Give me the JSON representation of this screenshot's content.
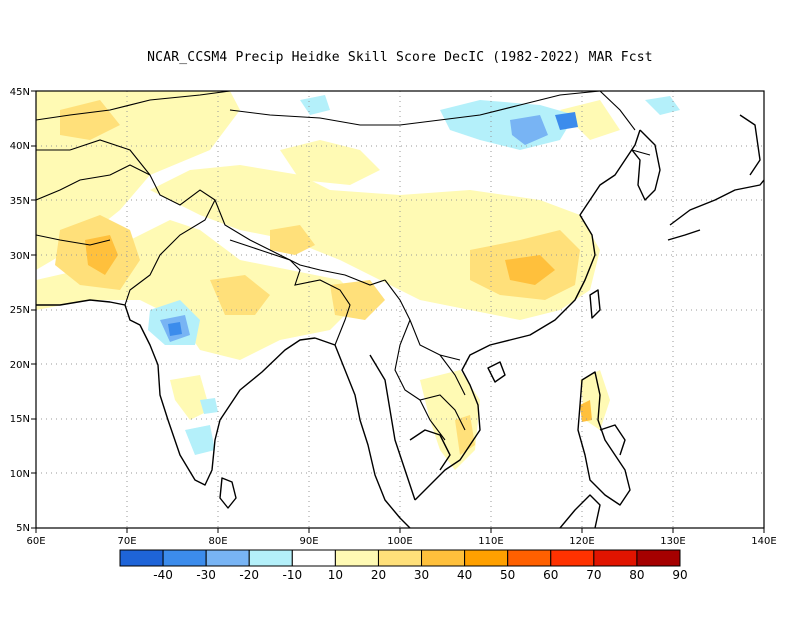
{
  "title": "NCAR_CCSM4 Precip Heidke Skill Score DecIC (1982-2022) MAR Fcst",
  "map": {
    "lon_range": [
      60,
      140
    ],
    "lat_range": [
      5,
      45
    ],
    "lon_ticks": [
      "60E",
      "70E",
      "80E",
      "90E",
      "100E",
      "110E",
      "120E",
      "130E",
      "140E"
    ],
    "lat_ticks": [
      "5N",
      "10N",
      "15N",
      "20N",
      "25N",
      "30N",
      "35N",
      "40N",
      "45N"
    ],
    "gridlines": "dotted"
  },
  "colorbar": {
    "colors": [
      "#1e64d8",
      "#3c8cec",
      "#78b4f4",
      "#b4f0fa",
      "#ffffff",
      "#fffab4",
      "#ffe07a",
      "#ffc03c",
      "#ffa000",
      "#ff6000",
      "#ff3200",
      "#e11400",
      "#a50000"
    ],
    "labels": [
      "-40",
      "-30",
      "-20",
      "-10",
      "10",
      "20",
      "30",
      "40",
      "50",
      "60",
      "70",
      "80",
      "90"
    ]
  }
}
